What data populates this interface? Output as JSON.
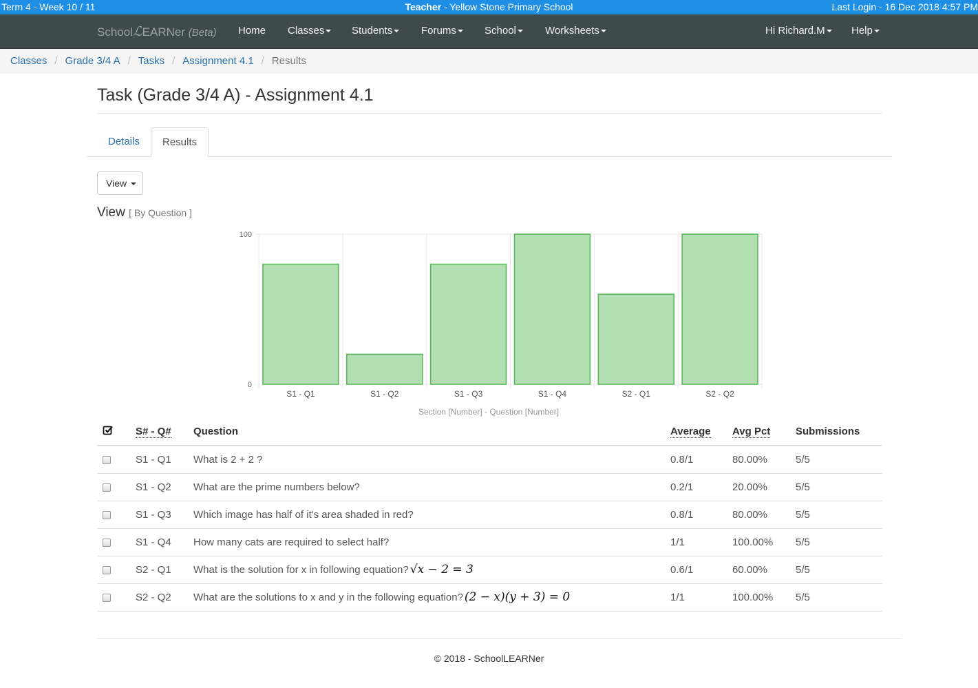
{
  "top_strip": {
    "term": "Term 4 - Week 10 / 11",
    "role": "Teacher",
    "school": " - Yellow Stone Primary School",
    "last_login": "Last Login - 16 Dec 2018 4:57 PM"
  },
  "navbar": {
    "brand_prefix": "School",
    "brand_script": "ℒ",
    "brand_suffix": "EARNer",
    "brand_beta": "(Beta)",
    "items": [
      "Home",
      "Classes",
      "Students",
      "Forums",
      "School",
      "Worksheets"
    ],
    "user": "Hi Richard.M",
    "help": "Help"
  },
  "breadcrumb": [
    "Classes",
    "Grade 3/4 A",
    "Tasks",
    "Assignment 4.1",
    "Results"
  ],
  "page": {
    "title": "Task (Grade 3/4 A) - Assignment 4.1",
    "tabs": [
      "Details",
      "Results"
    ],
    "view_button": "View",
    "view_heading": "View",
    "view_subheading": "[ By Question ]"
  },
  "chart_data": {
    "type": "bar",
    "categories": [
      "S1 - Q1",
      "S1 - Q2",
      "S1 - Q3",
      "S1 - Q4",
      "S2 - Q1",
      "S2 - Q2"
    ],
    "values": [
      80,
      20,
      80,
      100,
      60,
      100
    ],
    "xlabel": "Section [Number] - Question [Number]",
    "ylabel": "",
    "ylim": [
      0,
      100
    ],
    "yticks": [
      "0",
      "100"
    ],
    "bar_fill": "#b2dfb2",
    "bar_stroke": "#5cb85c",
    "grid": true
  },
  "table": {
    "headers": {
      "sq": "S# - Q#",
      "question": "Question",
      "average": "Average",
      "avg_pct": "Avg Pct",
      "submissions": "Submissions"
    },
    "rows": [
      {
        "sq": "S1 - Q1",
        "question": "What is 2 + 2 ?",
        "math": "",
        "average": "0.8/1",
        "avg_pct": "80.00%",
        "submissions": "5/5"
      },
      {
        "sq": "S1 - Q2",
        "question": "What are the prime numbers below?",
        "math": "",
        "average": "0.2/1",
        "avg_pct": "20.00%",
        "submissions": "5/5"
      },
      {
        "sq": "S1 - Q3",
        "question": "Which image has half of it's area shaded in red?",
        "math": "",
        "average": "0.8/1",
        "avg_pct": "80.00%",
        "submissions": "5/5"
      },
      {
        "sq": "S1 - Q4",
        "question": "How many cats are required to select half?",
        "math": "",
        "average": "1/1",
        "avg_pct": "100.00%",
        "submissions": "5/5"
      },
      {
        "sq": "S2 - Q1",
        "question": "What is the solution for x in following equation?",
        "math": "√x − 2 = 3",
        "average": "0.6/1",
        "avg_pct": "60.00%",
        "submissions": "5/5"
      },
      {
        "sq": "S2 - Q2",
        "question": "What are the solutions to x and y in the following equation?",
        "math": "(2 − x)(y + 3) = 0",
        "average": "1/1",
        "avg_pct": "100.00%",
        "submissions": "5/5"
      }
    ]
  },
  "footer": "© 2018 - SchoolLEARNer"
}
